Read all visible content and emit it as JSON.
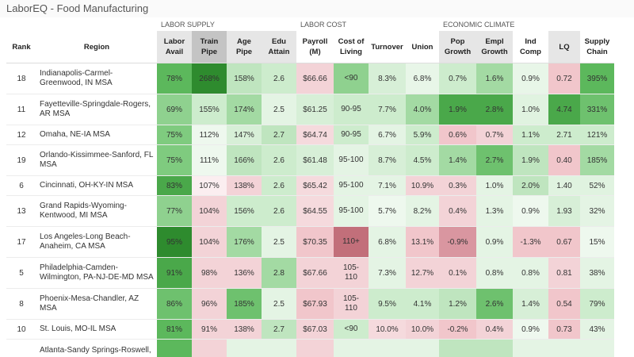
{
  "app": {
    "title": "LaborEQ - Food Manufacturing"
  },
  "groups": {
    "labor_supply": "LABOR SUPPLY",
    "labor_cost": "LABOR COST",
    "economic_climate": "ECONOMIC CLIMATE"
  },
  "columns": {
    "rank": "Rank",
    "region": "Region",
    "labor_avail": [
      "Labor",
      "Avail"
    ],
    "train_pipe": [
      "Train",
      "Pipe"
    ],
    "age_pipe": [
      "Age",
      "Pipe"
    ],
    "edu_attain": [
      "Edu",
      "Attain"
    ],
    "payroll": [
      "Payroll",
      "(M)"
    ],
    "cost_living": [
      "Cost of",
      "Living"
    ],
    "turnover": [
      "Turnover"
    ],
    "union": [
      "Union"
    ],
    "pop_growth": [
      "Pop",
      "Growth"
    ],
    "empl_growth": [
      "Empl",
      "Growth"
    ],
    "ind_comp": [
      "Ind",
      "Comp"
    ],
    "lq": [
      "LQ"
    ],
    "supply_chain": [
      "Supply",
      "Chain"
    ]
  },
  "rows": [
    {
      "rank": "18",
      "region": [
        "Indianapolis-Carmel-",
        "Greenwood, IN MSA"
      ],
      "labor_avail": "78%",
      "train_pipe": "268%",
      "age_pipe": "158%",
      "edu_attain": "2.6",
      "payroll": "$66.66",
      "cost_living": [
        "<90"
      ],
      "turnover": "8.3%",
      "union": "6.8%",
      "pop_growth": "0.7%",
      "empl_growth": "1.6%",
      "ind_comp": "0.9%",
      "lq": "0.72",
      "supply_chain": "395%"
    },
    {
      "rank": "11",
      "region": [
        "Fayetteville-Springdale-Rogers,",
        "AR MSA"
      ],
      "labor_avail": "69%",
      "train_pipe": "155%",
      "age_pipe": "174%",
      "edu_attain": "2.5",
      "payroll": "$61.25",
      "cost_living": [
        "90-95"
      ],
      "turnover": "7.7%",
      "union": "4.0%",
      "pop_growth": "1.9%",
      "empl_growth": "2.8%",
      "ind_comp": "1.0%",
      "lq": "4.74",
      "supply_chain": "331%"
    },
    {
      "rank": "12",
      "region": [
        "Omaha, NE-IA MSA"
      ],
      "labor_avail": "75%",
      "train_pipe": "112%",
      "age_pipe": "147%",
      "edu_attain": "2.7",
      "payroll": "$64.74",
      "cost_living": [
        "90-95"
      ],
      "turnover": "6.7%",
      "union": "5.9%",
      "pop_growth": "0.6%",
      "empl_growth": "0.7%",
      "ind_comp": "1.1%",
      "lq": "2.71",
      "supply_chain": "121%"
    },
    {
      "rank": "19",
      "region": [
        "Orlando-Kissimmee-Sanford, FL",
        "MSA"
      ],
      "labor_avail": "75%",
      "train_pipe": "111%",
      "age_pipe": "166%",
      "edu_attain": "2.6",
      "payroll": "$61.48",
      "cost_living": [
        "95-100"
      ],
      "turnover": "8.7%",
      "union": "4.5%",
      "pop_growth": "1.4%",
      "empl_growth": "2.7%",
      "ind_comp": "1.9%",
      "lq": "0.40",
      "supply_chain": "185%"
    },
    {
      "rank": "6",
      "region": [
        "Cincinnati, OH-KY-IN MSA"
      ],
      "labor_avail": "83%",
      "train_pipe": "107%",
      "age_pipe": "138%",
      "edu_attain": "2.6",
      "payroll": "$65.42",
      "cost_living": [
        "95-100"
      ],
      "turnover": "7.1%",
      "union": "10.9%",
      "pop_growth": "0.3%",
      "empl_growth": "1.0%",
      "ind_comp": "2.0%",
      "lq": "1.40",
      "supply_chain": "52%"
    },
    {
      "rank": "13",
      "region": [
        "Grand Rapids-Wyoming-",
        "Kentwood, MI MSA"
      ],
      "labor_avail": "77%",
      "train_pipe": "104%",
      "age_pipe": "156%",
      "edu_attain": "2.6",
      "payroll": "$64.55",
      "cost_living": [
        "95-100"
      ],
      "turnover": "5.7%",
      "union": "8.2%",
      "pop_growth": "0.4%",
      "empl_growth": "1.3%",
      "ind_comp": "0.9%",
      "lq": "1.93",
      "supply_chain": "32%"
    },
    {
      "rank": "17",
      "region": [
        "Los Angeles-Long Beach-",
        "Anaheim, CA MSA"
      ],
      "labor_avail": "95%",
      "train_pipe": "104%",
      "age_pipe": "176%",
      "edu_attain": "2.5",
      "payroll": "$70.35",
      "cost_living": [
        "110+"
      ],
      "turnover": "6.8%",
      "union": "13.1%",
      "pop_growth": "-0.9%",
      "empl_growth": "0.9%",
      "ind_comp": "-1.3%",
      "lq": "0.67",
      "supply_chain": "15%"
    },
    {
      "rank": "5",
      "region": [
        "Philadelphia-Camden-",
        "Wilmington, PA-NJ-DE-MD MSA"
      ],
      "labor_avail": "91%",
      "train_pipe": "98%",
      "age_pipe": "136%",
      "edu_attain": "2.8",
      "payroll": "$67.66",
      "cost_living": [
        "105-",
        "110"
      ],
      "turnover": "7.3%",
      "union": "12.7%",
      "pop_growth": "0.1%",
      "empl_growth": "0.8%",
      "ind_comp": "0.8%",
      "lq": "0.81",
      "supply_chain": "38%"
    },
    {
      "rank": "8",
      "region": [
        "Phoenix-Mesa-Chandler, AZ",
        "MSA"
      ],
      "labor_avail": "86%",
      "train_pipe": "96%",
      "age_pipe": "185%",
      "edu_attain": "2.5",
      "payroll": "$67.93",
      "cost_living": [
        "105-",
        "110"
      ],
      "turnover": "9.5%",
      "union": "4.1%",
      "pop_growth": "1.2%",
      "empl_growth": "2.6%",
      "ind_comp": "1.4%",
      "lq": "0.54",
      "supply_chain": "79%"
    },
    {
      "rank": "10",
      "region": [
        "St. Louis, MO-IL MSA"
      ],
      "labor_avail": "81%",
      "train_pipe": "91%",
      "age_pipe": "138%",
      "edu_attain": "2.7",
      "payroll": "$67.03",
      "cost_living": [
        "<90"
      ],
      "turnover": "10.0%",
      "union": "10.0%",
      "pop_growth": "-0.2%",
      "empl_growth": "0.4%",
      "ind_comp": "0.9%",
      "lq": "0.73",
      "supply_chain": "43%"
    },
    {
      "rank": "",
      "region": [
        "Atlanta-Sandy Springs-Roswell,",
        ""
      ],
      "labor_avail": "",
      "train_pipe": "",
      "age_pipe": "",
      "edu_attain": "",
      "payroll": "",
      "cost_living": [
        ""
      ],
      "turnover": "",
      "union": "",
      "pop_growth": "",
      "empl_growth": "",
      "ind_comp": "",
      "lq": "",
      "supply_chain": ""
    }
  ],
  "cell_colors": [
    {
      "labor_avail": "#5cb85c",
      "train_pipe": "#2e8b2e",
      "age_pipe": "#bfe5bf",
      "edu_attain": "#cdeccd",
      "payroll": "#f3d3d7",
      "cost_living": "#8fd18f",
      "turnover": "#d7efd7",
      "union": "#e8f6e8",
      "pop_growth": "#cdeccd",
      "empl_growth": "#a3daa3",
      "ind_comp": "#e8f6e8",
      "lq": "#f1c6cb",
      "supply_chain": "#5cb85c"
    },
    {
      "labor_avail": "#8fd18f",
      "train_pipe": "#cdeccd",
      "age_pipe": "#a3daa3",
      "edu_attain": "#e4f4e4",
      "payroll": "#d7efd7",
      "cost_living": "#cdeccd",
      "turnover": "#cdeccd",
      "union": "#a3daa3",
      "pop_growth": "#4aa84a",
      "empl_growth": "#4aa84a",
      "ind_comp": "#e0f3e0",
      "lq": "#4aa84a",
      "supply_chain": "#6ec16e"
    },
    {
      "labor_avail": "#7fcb7f",
      "train_pipe": "#eef8ee",
      "age_pipe": "#d7efd7",
      "edu_attain": "#bfe5bf",
      "payroll": "#f5dadd",
      "cost_living": "#cdeccd",
      "turnover": "#e4f4e4",
      "union": "#cdeccd",
      "pop_growth": "#f1c6cb",
      "empl_growth": "#f3d3d7",
      "ind_comp": "#cdeccd",
      "lq": "#cdeccd",
      "supply_chain": "#cdeccd"
    },
    {
      "labor_avail": "#7fcb7f",
      "train_pipe": "#eef8ee",
      "age_pipe": "#bfe5bf",
      "edu_attain": "#cdeccd",
      "payroll": "#d7efd7",
      "cost_living": "#e4f4e4",
      "turnover": "#d7efd7",
      "union": "#cdeccd",
      "pop_growth": "#a3daa3",
      "empl_growth": "#6ec16e",
      "ind_comp": "#bfe5bf",
      "lq": "#f1c6cb",
      "supply_chain": "#a3daa3"
    },
    {
      "labor_avail": "#4aa84a",
      "train_pipe": "#fbeef0",
      "age_pipe": "#f3d3d7",
      "edu_attain": "#cdeccd",
      "payroll": "#f5dadd",
      "cost_living": "#e4f4e4",
      "turnover": "#e4f4e4",
      "union": "#f3d3d7",
      "pop_growth": "#f3d3d7",
      "empl_growth": "#e4f4e4",
      "ind_comp": "#bfe5bf",
      "lq": "#e0f3e0",
      "supply_chain": "#e0f3e0"
    },
    {
      "labor_avail": "#8fd18f",
      "train_pipe": "#f3d3d7",
      "age_pipe": "#cdeccd",
      "edu_attain": "#cdeccd",
      "payroll": "#f5dadd",
      "cost_living": "#e4f4e4",
      "turnover": "#eef8ee",
      "union": "#e4f4e4",
      "pop_growth": "#f3d3d7",
      "empl_growth": "#e4f4e4",
      "ind_comp": "#eef8ee",
      "lq": "#d7efd7",
      "supply_chain": "#e4f4e4"
    },
    {
      "labor_avail": "#2e8b2e",
      "train_pipe": "#f3d3d7",
      "age_pipe": "#a3daa3",
      "edu_attain": "#e4f4e4",
      "payroll": "#f1c6cb",
      "cost_living": "#c26f7a",
      "turnover": "#e4f4e4",
      "union": "#f1c6cb",
      "pop_growth": "#d996a0",
      "empl_growth": "#e4f4e4",
      "ind_comp": "#f1c6cb",
      "lq": "#f1c6cb",
      "supply_chain": "#eef8ee"
    },
    {
      "labor_avail": "#4aa84a",
      "train_pipe": "#f3d3d7",
      "age_pipe": "#f3d3d7",
      "edu_attain": "#a3daa3",
      "payroll": "#f3d3d7",
      "cost_living": "#f3d3d7",
      "turnover": "#e4f4e4",
      "union": "#f3d3d7",
      "pop_growth": "#f3d3d7",
      "empl_growth": "#e4f4e4",
      "ind_comp": "#e4f4e4",
      "lq": "#f3d3d7",
      "supply_chain": "#e4f4e4"
    },
    {
      "labor_avail": "#6ec16e",
      "train_pipe": "#f3d3d7",
      "age_pipe": "#6ec16e",
      "edu_attain": "#e4f4e4",
      "payroll": "#f1c6cb",
      "cost_living": "#f3d3d7",
      "turnover": "#cdeccd",
      "union": "#cdeccd",
      "pop_growth": "#bfe5bf",
      "empl_growth": "#6ec16e",
      "ind_comp": "#d7efd7",
      "lq": "#f1c6cb",
      "supply_chain": "#cdeccd"
    },
    {
      "labor_avail": "#5cb85c",
      "train_pipe": "#f3d3d7",
      "age_pipe": "#f3d3d7",
      "edu_attain": "#bfe5bf",
      "payroll": "#f3d3d7",
      "cost_living": "#cdeccd",
      "turnover": "#f5dadd",
      "union": "#f3d3d7",
      "pop_growth": "#f1c6cb",
      "empl_growth": "#f3d3d7",
      "ind_comp": "#eef8ee",
      "lq": "#f1c6cb",
      "supply_chain": "#e4f4e4"
    },
    {
      "labor_avail": "#5cb85c",
      "train_pipe": "#f3d3d7",
      "age_pipe": "#e4f4e4",
      "edu_attain": "#e4f4e4",
      "payroll": "#f3d3d7",
      "cost_living": "#e4f4e4",
      "turnover": "#e4f4e4",
      "union": "#e4f4e4",
      "pop_growth": "#bfe5bf",
      "empl_growth": "#bfe5bf",
      "ind_comp": "#e4f4e4",
      "lq": "#e4f4e4",
      "supply_chain": "#e4f4e4"
    }
  ]
}
